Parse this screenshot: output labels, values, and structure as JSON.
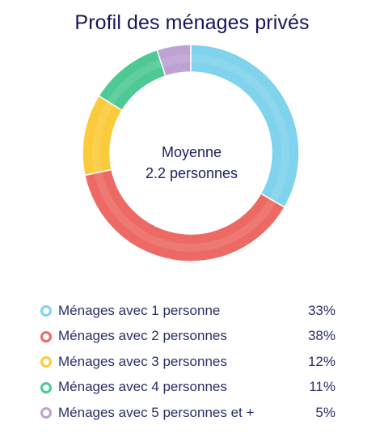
{
  "chart_data": {
    "type": "pie",
    "title": "Profil des ménages privés",
    "center_text": [
      "Moyenne",
      "2.2 personnes"
    ],
    "legend_position": "bottom",
    "series": [
      {
        "name": "Ménages avec 1 personne",
        "value": 33,
        "label": "33%",
        "color": "#7fd3ec"
      },
      {
        "name": "Ménages avec 2 personnes",
        "value": 38,
        "label": "38%",
        "color": "#ec6a63"
      },
      {
        "name": "Ménages avec 3 personnes",
        "value": 12,
        "label": "12%",
        "color": "#fccb3c"
      },
      {
        "name": "Ménages avec 4 personnes",
        "value": 11,
        "label": "11%",
        "color": "#4ec995"
      },
      {
        "name": "Ménages avec 5 personnes et +",
        "value": 5,
        "label": "5%",
        "color": "#bfa2d4"
      }
    ]
  }
}
